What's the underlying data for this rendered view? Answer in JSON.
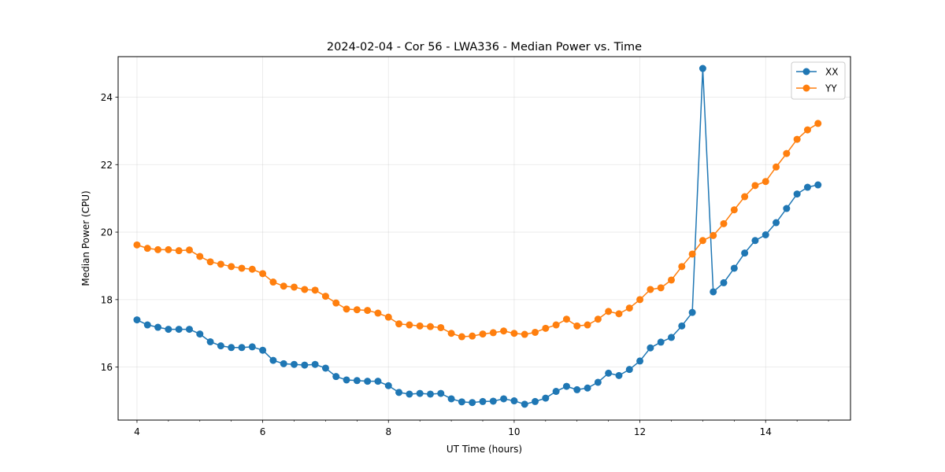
{
  "chart_data": {
    "type": "line",
    "title": "2024-02-04 - Cor 56 - LWA336 - Median Power vs. Time",
    "xlabel": "UT Time (hours)",
    "ylabel": "Median Power (CPU)",
    "xlim": [
      3.7,
      15.35
    ],
    "ylim": [
      14.43,
      25.2
    ],
    "xticks": [
      4,
      6,
      8,
      10,
      12,
      14
    ],
    "yticks": [
      16,
      18,
      20,
      22,
      24
    ],
    "x_minor_step": 0.5,
    "grid": true,
    "legend_position": "top-right",
    "x": [
      4.0,
      4.1667,
      4.3333,
      4.5,
      4.6667,
      4.8333,
      5.0,
      5.1667,
      5.3333,
      5.5,
      5.6667,
      5.8333,
      6.0,
      6.1667,
      6.3333,
      6.5,
      6.6667,
      6.8333,
      7.0,
      7.1667,
      7.3333,
      7.5,
      7.6667,
      7.8333,
      8.0,
      8.1667,
      8.3333,
      8.5,
      8.6667,
      8.8333,
      9.0,
      9.1667,
      9.3333,
      9.5,
      9.6667,
      9.8333,
      10.0,
      10.1667,
      10.3333,
      10.5,
      10.6667,
      10.8333,
      11.0,
      11.1667,
      11.3333,
      11.5,
      11.6667,
      11.8333,
      12.0,
      12.1667,
      12.3333,
      12.5,
      12.6667,
      12.8333,
      13.0,
      13.1667,
      13.3333,
      13.5,
      13.6667,
      13.8333,
      14.0,
      14.1667,
      14.3333,
      14.5,
      14.6667,
      14.8333
    ],
    "series": [
      {
        "name": "XX",
        "color": "#1f77b4",
        "values": [
          17.4,
          17.25,
          17.18,
          17.12,
          17.12,
          17.12,
          16.98,
          16.75,
          16.63,
          16.58,
          16.58,
          16.6,
          16.5,
          16.2,
          16.1,
          16.08,
          16.06,
          16.08,
          15.97,
          15.72,
          15.62,
          15.6,
          15.58,
          15.58,
          15.45,
          15.25,
          15.2,
          15.22,
          15.2,
          15.22,
          15.06,
          14.97,
          14.95,
          14.98,
          14.99,
          15.06,
          15.0,
          14.9,
          14.98,
          15.08,
          15.28,
          15.43,
          15.33,
          15.38,
          15.55,
          15.82,
          15.75,
          15.93,
          16.18,
          16.57,
          16.74,
          16.88,
          17.22,
          17.62,
          24.85,
          18.23,
          18.5,
          18.93,
          19.38,
          19.75,
          19.92,
          20.28,
          20.7,
          21.13,
          21.33,
          21.4
        ]
      },
      {
        "name": "YY",
        "color": "#ff7f0e",
        "values": [
          19.62,
          19.52,
          19.48,
          19.48,
          19.45,
          19.47,
          19.28,
          19.12,
          19.05,
          18.98,
          18.93,
          18.9,
          18.77,
          18.52,
          18.4,
          18.37,
          18.3,
          18.28,
          18.1,
          17.9,
          17.72,
          17.7,
          17.68,
          17.6,
          17.48,
          17.28,
          17.25,
          17.22,
          17.2,
          17.17,
          17.0,
          16.9,
          16.92,
          16.98,
          17.02,
          17.07,
          17.0,
          16.97,
          17.03,
          17.15,
          17.25,
          17.42,
          17.22,
          17.25,
          17.42,
          17.65,
          17.58,
          17.75,
          18.0,
          18.3,
          18.35,
          18.58,
          18.98,
          19.35,
          19.75,
          19.9,
          20.25,
          20.66,
          21.05,
          21.38,
          21.5,
          21.93,
          22.33,
          22.75,
          23.03,
          23.22
        ]
      }
    ]
  }
}
